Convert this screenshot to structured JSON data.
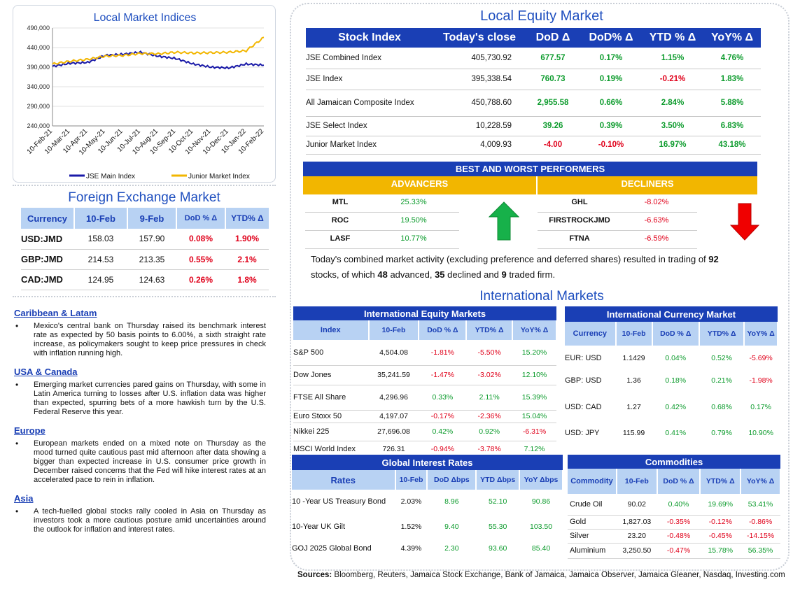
{
  "chart_data": {
    "type": "line",
    "title": "Local Market Indices",
    "x": [
      "10-Feb-21",
      "10-Mar-21",
      "10-Apr-21",
      "10-May-21",
      "10-Jun-21",
      "10-Jul-21",
      "10-Aug-21",
      "10-Sep-21",
      "10-Oct-21",
      "10-Nov-21",
      "10-Dec-21",
      "10-Jan-22",
      "10-Feb-22"
    ],
    "series": [
      {
        "name": "JSE Main Index",
        "color": "#1a1aa8",
        "values": [
          392000,
          400000,
          402000,
          420000,
          423000,
          428000,
          418000,
          412000,
          398000,
          390000,
          388000,
          398000,
          395000
        ]
      },
      {
        "name": "Junior Market Index",
        "color": "#f2b600",
        "values": [
          398000,
          405000,
          410000,
          418000,
          420000,
          425000,
          424000,
          428000,
          426000,
          427000,
          428000,
          432000,
          466000
        ]
      }
    ],
    "yticks": [
      "490,000",
      "440,000",
      "390,000",
      "340,000",
      "290,000",
      "240,000"
    ],
    "ylim": [
      240000,
      490000
    ],
    "grid": true,
    "legend": "bottom"
  },
  "local_equity": {
    "title": "Local Equity Market",
    "headers": [
      "Stock Index",
      "Today's close",
      "DoD  Δ",
      "DoD% Δ",
      "YTD % Δ",
      "YoY% Δ"
    ],
    "rows": [
      {
        "name": "JSE Combined Index",
        "close": "405,730.92",
        "dod": "677.57",
        "dodp": "0.17%",
        "ytd": "1.15%",
        "yoy": "4.76%",
        "c": [
          "green",
          "green",
          "green",
          "green"
        ]
      },
      {
        "name": "JSE Index",
        "close": "395,338.54",
        "dod": "760.73",
        "dodp": "0.19%",
        "ytd": "-0.21%",
        "yoy": "1.83%",
        "c": [
          "green",
          "green",
          "red",
          "green"
        ]
      },
      {
        "name": "All Jamaican Composite Index",
        "close": "450,788.60",
        "dod": "2,955.58",
        "dodp": "0.66%",
        "ytd": "2.84%",
        "yoy": "5.88%",
        "c": [
          "green",
          "green",
          "green",
          "green"
        ]
      },
      {
        "name": "JSE Select Index",
        "close": "10,228.59",
        "dod": "39.26",
        "dodp": "0.39%",
        "ytd": "3.50%",
        "yoy": "6.83%",
        "c": [
          "green",
          "green",
          "green",
          "green"
        ]
      },
      {
        "name": "Junior Market Index",
        "close": "4,009.93",
        "dod": "-4.00",
        "dodp": "-0.10%",
        "ytd": "16.97%",
        "yoy": "43.18%",
        "c": [
          "red",
          "red",
          "green",
          "green"
        ]
      }
    ]
  },
  "performers": {
    "title": "BEST AND WORST PERFORMERS",
    "advancers_label": "ADVANCERS",
    "decliners_label": "DECLINERS",
    "advancers": [
      {
        "sym": "MTL",
        "pct": "25.33%"
      },
      {
        "sym": "ROC",
        "pct": "19.50%"
      },
      {
        "sym": "LASF",
        "pct": "10.77%"
      }
    ],
    "decliners": [
      {
        "sym": "GHL",
        "pct": "-8.02%"
      },
      {
        "sym": "FIRSTROCKJMD",
        "pct": "-6.63%"
      },
      {
        "sym": "FTNA",
        "pct": "-6.59%"
      }
    ]
  },
  "summary": {
    "p1": "Today's combined market activity (excluding preference and deferred shares) resulted in trading of ",
    "n1": "92",
    "p2": " stocks, of which ",
    "n2": "48",
    "p3": " advanced, ",
    "n3": "35",
    "p4": " declined and ",
    "n4": "9",
    "p5": " traded firm."
  },
  "fx": {
    "title": "Foreign Exchange Market",
    "headers": [
      "Currency",
      "10-Feb",
      "9-Feb",
      "DoD % Δ",
      "YTD% Δ"
    ],
    "rows": [
      {
        "cur": "USD:JMD",
        "a": "158.03",
        "b": "157.90",
        "dod": "0.08%",
        "ytd": "1.90%"
      },
      {
        "cur": "GBP:JMD",
        "a": "214.53",
        "b": "213.35",
        "dod": "0.55%",
        "ytd": "2.1%"
      },
      {
        "cur": "CAD:JMD",
        "a": "124.95",
        "b": "124.63",
        "dod": "0.26%",
        "ytd": "1.8%"
      }
    ]
  },
  "news": [
    {
      "heading": "Caribbean & Latam",
      "text": "Mexico's central bank on Thursday raised its benchmark interest rate as expected by 50 basis points to 6.00%, a sixth straight rate increase, as policymakers sought to keep price pressures in check with inflation running high."
    },
    {
      "heading": "USA & Canada",
      "text": "Emerging market currencies pared gains on Thursday, with some in Latin America turning to losses after U.S. inflation data was higher than expected, spurring bets of a more hawkish turn by the U.S. Federal Reserve this year."
    },
    {
      "heading": "Europe",
      "text": "European markets ended on a mixed note on Thursday as the mood turned quite cautious past mid afternoon after data showing a bigger than expected increase in U.S. consumer price growth in December raised concerns that the Fed will hike interest rates at an accelerated pace to rein in inflation."
    },
    {
      "heading": "Asia",
      "text": "A tech-fuelled global stocks rally cooled in Asia on Thursday as investors took a more cautious posture amid uncertainties around the outlook for inflation and interest rates."
    }
  ],
  "intl": {
    "title": "International Markets",
    "equity": {
      "title": "International Equity Markets",
      "headers": [
        "Index",
        "10-Feb",
        "DoD % Δ",
        "YTD% Δ",
        "YoY% Δ"
      ],
      "rows": [
        {
          "n": "S&P 500",
          "v": "4,504.08",
          "d": "-1.81%",
          "y": "-5.50%",
          "yy": "15.20%"
        },
        {
          "n": "Dow Jones",
          "v": "35,241.59",
          "d": "-1.47%",
          "y": "-3.02%",
          "yy": "12.10%"
        },
        {
          "n": "FTSE All Share",
          "v": "4,296.96",
          "d": "0.33%",
          "y": "2.11%",
          "yy": "15.39%"
        },
        {
          "n": "Euro Stoxx 50",
          "v": "4,197.07",
          "d": "-0.17%",
          "y": "-2.36%",
          "yy": "15.04%"
        },
        {
          "n": "Nikkei 225",
          "v": "27,696.08",
          "d": "0.42%",
          "y": "0.92%",
          "yy": "-6.31%"
        },
        {
          "n": "MSCI World Index",
          "v": "726.31",
          "d": "-0.94%",
          "y": "-3.78%",
          "yy": "7.12%"
        }
      ]
    },
    "currency": {
      "title": "International Currency Market",
      "headers": [
        "Currency",
        "10-Feb",
        "DoD % Δ",
        "YTD% Δ",
        "YoY% Δ"
      ],
      "rows": [
        {
          "n": "EUR: USD",
          "v": "1.1429",
          "d": "0.04%",
          "y": "0.52%",
          "yy": "-5.69%"
        },
        {
          "n": "GBP: USD",
          "v": "1.36",
          "d": "0.18%",
          "y": "0.21%",
          "yy": "-1.98%"
        },
        {
          "n": "USD: CAD",
          "v": "1.27",
          "d": "0.42%",
          "y": "0.68%",
          "yy": "0.17%"
        },
        {
          "n": "USD: JPY",
          "v": "115.99",
          "d": "0.41%",
          "y": "0.79%",
          "yy": "10.90%"
        }
      ]
    },
    "rates": {
      "title": "Global Interest Rates",
      "headers": [
        "Rates",
        "10-Feb",
        "DoD Δbps",
        "YTD Δbps",
        "YoY Δbps"
      ],
      "rows": [
        {
          "n": "10 -Year US Treasury Bond",
          "v": "2.03%",
          "d": "8.96",
          "y": "52.10",
          "yy": "90.86"
        },
        {
          "n": "10-Year UK Gilt",
          "v": "1.52%",
          "d": "9.40",
          "y": "55.30",
          "yy": "103.50"
        },
        {
          "n": "GOJ 2025 Global Bond",
          "v": "4.39%",
          "d": "2.30",
          "y": "93.60",
          "yy": "85.40"
        }
      ]
    },
    "commodities": {
      "title": "Commodities",
      "headers": [
        "Commodity",
        "10-Feb",
        "DoD % Δ",
        "YTD% Δ",
        "YoY% Δ"
      ],
      "rows": [
        {
          "n": "Crude Oil",
          "v": "90.02",
          "d": "0.40%",
          "y": "19.69%",
          "yy": "53.41%"
        },
        {
          "n": "Gold",
          "v": "1,827.03",
          "d": "-0.35%",
          "y": "-0.12%",
          "yy": "-0.86%"
        },
        {
          "n": "Silver",
          "v": "23.20",
          "d": "-0.48%",
          "y": "-0.45%",
          "yy": "-14.15%"
        },
        {
          "n": "Aluminium",
          "v": "3,250.50",
          "d": "-0.47%",
          "y": "15.78%",
          "yy": "56.35%"
        }
      ]
    }
  },
  "sources": {
    "label": "Sources:",
    "text": " Bloomberg, Reuters, Jamaica Stock Exchange, Bank of Jamaica, Jamaica Observer, Jamaica Gleaner, Nasdaq, Investing.com"
  }
}
